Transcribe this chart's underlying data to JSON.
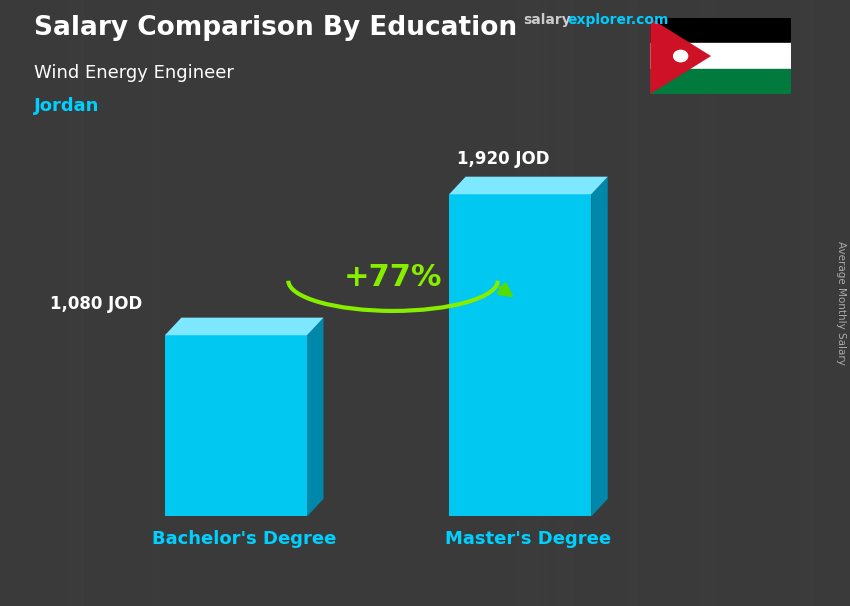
{
  "title": "Salary Comparison By Education",
  "subtitle": "Wind Energy Engineer",
  "country": "Jordan",
  "categories": [
    "Bachelor's Degree",
    "Master's Degree"
  ],
  "values": [
    1080,
    1920
  ],
  "value_labels": [
    "1,080 JOD",
    "1,920 JOD"
  ],
  "pct_change": "+77%",
  "front_color": "#00c8f0",
  "top_color": "#7de8ff",
  "side_color": "#0088aa",
  "bg_color": "#3a3a3a",
  "title_color": "#ffffff",
  "subtitle_color": "#ffffff",
  "country_color": "#00d0ff",
  "label_color": "#ffffff",
  "xlabel_color": "#00d0ff",
  "pct_color": "#88ee00",
  "arrow_color": "#55dd00",
  "site_salary_color": "#cccccc",
  "site_explorer_color": "#00ccff",
  "ylabel_text": "Average Monthly Salary",
  "ylim_max": 2500
}
